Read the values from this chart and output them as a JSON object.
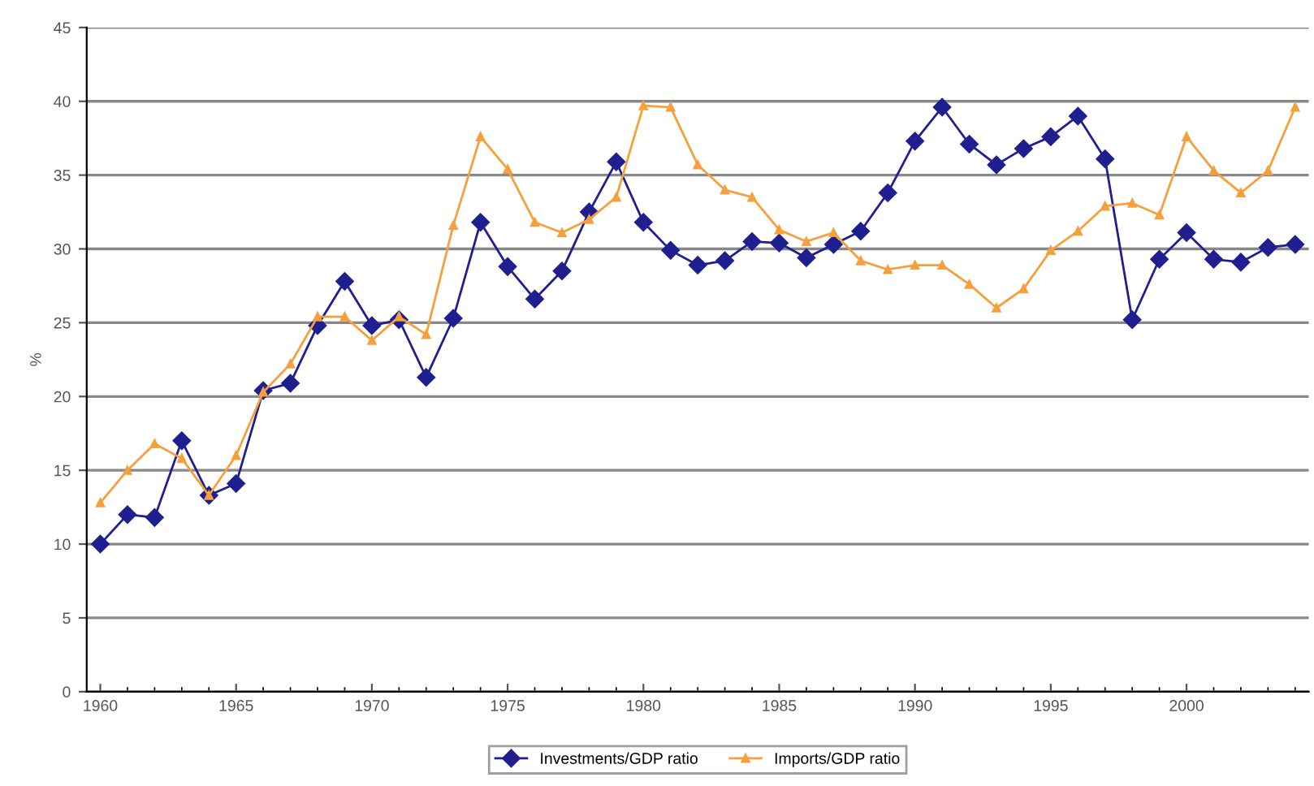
{
  "chart_data": {
    "type": "line",
    "ylabel": "%",
    "x": [
      1960,
      1961,
      1962,
      1963,
      1964,
      1965,
      1966,
      1967,
      1968,
      1969,
      1970,
      1971,
      1972,
      1973,
      1974,
      1975,
      1976,
      1977,
      1978,
      1979,
      1980,
      1981,
      1982,
      1983,
      1984,
      1985,
      1986,
      1987,
      1988,
      1989,
      1990,
      1991,
      1992,
      1993,
      1994,
      1995,
      1996,
      1997,
      1998,
      1999,
      2000,
      2001,
      2002,
      2003,
      2004
    ],
    "series": [
      {
        "name": "Investments/GDP ratio",
        "color": "#1f1f8f",
        "marker": "diamond",
        "values": [
          10.0,
          12.0,
          11.8,
          17.0,
          13.3,
          14.1,
          20.4,
          20.9,
          24.8,
          27.8,
          24.8,
          25.2,
          21.3,
          25.3,
          31.8,
          28.8,
          26.6,
          28.5,
          32.5,
          35.9,
          31.8,
          29.9,
          28.9,
          29.2,
          30.5,
          30.4,
          29.4,
          30.3,
          31.2,
          33.8,
          37.3,
          39.6,
          37.1,
          35.7,
          36.8,
          37.6,
          39.0,
          36.1,
          25.2,
          29.3,
          31.1,
          29.3,
          29.1,
          30.1,
          30.3
        ]
      },
      {
        "name": "Imports/GDP ratio",
        "color": "#f5a03c",
        "marker": "triangle",
        "values": [
          12.8,
          15.0,
          16.8,
          15.8,
          13.3,
          16.0,
          20.3,
          22.2,
          25.4,
          25.4,
          23.8,
          25.4,
          24.2,
          31.6,
          37.6,
          35.4,
          31.8,
          31.1,
          32.0,
          33.5,
          39.7,
          39.6,
          35.7,
          34.0,
          33.5,
          31.3,
          30.5,
          31.1,
          29.2,
          28.6,
          28.9,
          28.9,
          27.6,
          26.0,
          27.3,
          29.9,
          31.2,
          32.9,
          33.1,
          32.3,
          37.6,
          35.3,
          33.8,
          35.3,
          39.6
        ]
      }
    ],
    "xlim": [
      1959.5,
      2004.5
    ],
    "xticks": [
      1960,
      1965,
      1970,
      1975,
      1980,
      1985,
      1990,
      1995,
      2000
    ],
    "ylim": [
      0,
      45
    ],
    "yticks": [
      0,
      5,
      10,
      15,
      20,
      25,
      30,
      35,
      40,
      45
    ],
    "grid": "y",
    "legend": "bottom"
  }
}
